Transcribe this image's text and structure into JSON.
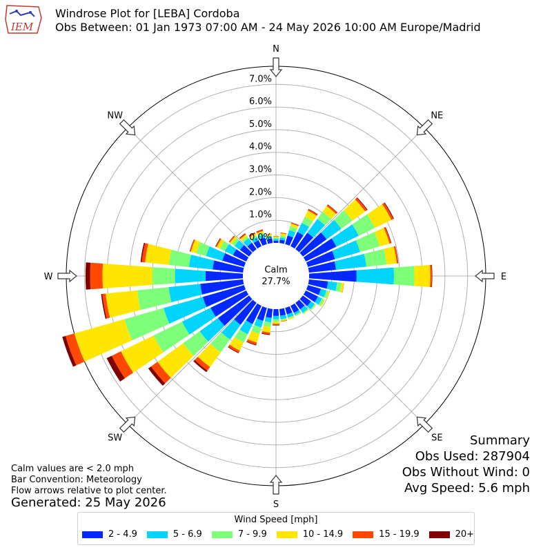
{
  "header": {
    "logo_text": "IEM",
    "title_line1": "Windrose Plot for [LEBA] Cordoba",
    "title_line2": "Obs Between: 01 Jan 1973 07:00 AM - 24 May 2026 10:00 AM Europe/Madrid"
  },
  "summary": {
    "heading": "Summary",
    "obs_used": "Obs Used: 287904",
    "obs_without_wind": "Obs Without Wind: 0",
    "avg_speed": "Avg Speed: 5.6 mph"
  },
  "notes": {
    "calm_note": "Calm values are < 2.0 mph",
    "bar_convention": "Bar Convention: Meteorology",
    "flow_note": "Flow arrows relative to plot center.",
    "generated": "Generated: 25 May 2026"
  },
  "legend": {
    "title": "Wind Speed [mph]",
    "items": [
      {
        "label": "2 - 4.9",
        "color": "#0028ff"
      },
      {
        "label": "5 - 6.9",
        "color": "#00d4ff"
      },
      {
        "label": "7 - 9.9",
        "color": "#7dff7a"
      },
      {
        "label": "10 - 14.9",
        "color": "#ffe600"
      },
      {
        "label": "15 - 19.9",
        "color": "#ff4800"
      },
      {
        "label": "20+",
        "color": "#800000"
      }
    ]
  },
  "chart_data": {
    "type": "windrose",
    "center_label": "Calm",
    "calm_percent": "27.7%",
    "radial_ticks": [
      "0.0%",
      "1.0%",
      "2.0%",
      "3.0%",
      "4.0%",
      "5.0%",
      "6.0%",
      "7.0%"
    ],
    "radial_max_percent": 7.8,
    "compass_labels": [
      "N",
      "NE",
      "E",
      "SE",
      "S",
      "SW",
      "W",
      "NW"
    ],
    "speed_bins": [
      "2 - 4.9",
      "5 - 6.9",
      "7 - 9.9",
      "10 - 14.9",
      "15 - 19.9",
      "20+"
    ],
    "colors": [
      "#0028ff",
      "#00d4ff",
      "#7dff7a",
      "#ffe600",
      "#ff4800",
      "#800000"
    ],
    "directions_deg": [
      0,
      10,
      20,
      30,
      40,
      50,
      60,
      70,
      80,
      90,
      100,
      110,
      120,
      130,
      140,
      150,
      160,
      170,
      180,
      190,
      200,
      210,
      220,
      230,
      240,
      250,
      260,
      270,
      280,
      290,
      300,
      310,
      320,
      330,
      340,
      350
    ],
    "values": [
      [
        0.1,
        0.08,
        0.06,
        0.05,
        0.02,
        0.0
      ],
      [
        0.15,
        0.1,
        0.09,
        0.1,
        0.03,
        0.0
      ],
      [
        0.4,
        0.25,
        0.18,
        0.12,
        0.03,
        0.01
      ],
      [
        0.7,
        0.45,
        0.3,
        0.3,
        0.06,
        0.02
      ],
      [
        0.9,
        0.75,
        0.4,
        0.3,
        0.07,
        0.02
      ],
      [
        1.3,
        0.8,
        0.6,
        0.7,
        0.1,
        0.03
      ],
      [
        1.5,
        1.1,
        0.8,
        0.8,
        0.1,
        0.03
      ],
      [
        1.25,
        1.15,
        0.9,
        0.45,
        0.07,
        0.02
      ],
      [
        1.2,
        1.35,
        0.9,
        0.45,
        0.06,
        0.01
      ],
      [
        2.1,
        1.65,
        0.9,
        0.7,
        0.07,
        0.02
      ],
      [
        0.85,
        0.4,
        0.2,
        0.1,
        0.01,
        0.0
      ],
      [
        0.6,
        0.25,
        0.1,
        0.05,
        0.0,
        0.0
      ],
      [
        0.6,
        0.2,
        0.1,
        0.05,
        0.0,
        0.0
      ],
      [
        0.45,
        0.2,
        0.05,
        0.02,
        0.0,
        0.0
      ],
      [
        0.35,
        0.2,
        0.05,
        0.02,
        0.0,
        0.0
      ],
      [
        0.35,
        0.1,
        0.05,
        0.02,
        0.0,
        0.0
      ],
      [
        0.3,
        0.15,
        0.05,
        0.05,
        0.0,
        0.0
      ],
      [
        0.3,
        0.15,
        0.05,
        0.05,
        0.02,
        0.0
      ],
      [
        0.3,
        0.15,
        0.1,
        0.1,
        0.05,
        0.02
      ],
      [
        0.4,
        0.2,
        0.2,
        0.25,
        0.08,
        0.03
      ],
      [
        0.6,
        0.3,
        0.3,
        0.4,
        0.1,
        0.03
      ],
      [
        0.9,
        0.5,
        0.4,
        0.4,
        0.1,
        0.03
      ],
      [
        1.2,
        0.8,
        0.7,
        0.8,
        0.2,
        0.08
      ],
      [
        1.7,
        1.0,
        0.9,
        1.4,
        0.35,
        0.15
      ],
      [
        1.75,
        1.4,
        1.4,
        1.6,
        0.45,
        0.25
      ],
      [
        1.9,
        1.8,
        1.8,
        2.3,
        0.4,
        0.15
      ],
      [
        1.9,
        1.4,
        1.4,
        1.4,
        0.15,
        0.05
      ],
      [
        1.65,
        1.35,
        1.0,
        2.2,
        0.55,
        0.2
      ],
      [
        1.35,
        1.05,
        0.9,
        1.05,
        0.15,
        0.05
      ],
      [
        1.0,
        0.75,
        0.45,
        0.25,
        0.05,
        0.01
      ],
      [
        0.65,
        0.4,
        0.25,
        0.15,
        0.05,
        0.02
      ],
      [
        0.5,
        0.3,
        0.15,
        0.1,
        0.05,
        0.01
      ],
      [
        0.35,
        0.25,
        0.1,
        0.1,
        0.05,
        0.02
      ],
      [
        0.3,
        0.15,
        0.08,
        0.08,
        0.05,
        0.02
      ],
      [
        0.3,
        0.15,
        0.08,
        0.08,
        0.05,
        0.02
      ],
      [
        0.2,
        0.1,
        0.05,
        0.05,
        0.02,
        0.0
      ]
    ],
    "grid": true
  }
}
